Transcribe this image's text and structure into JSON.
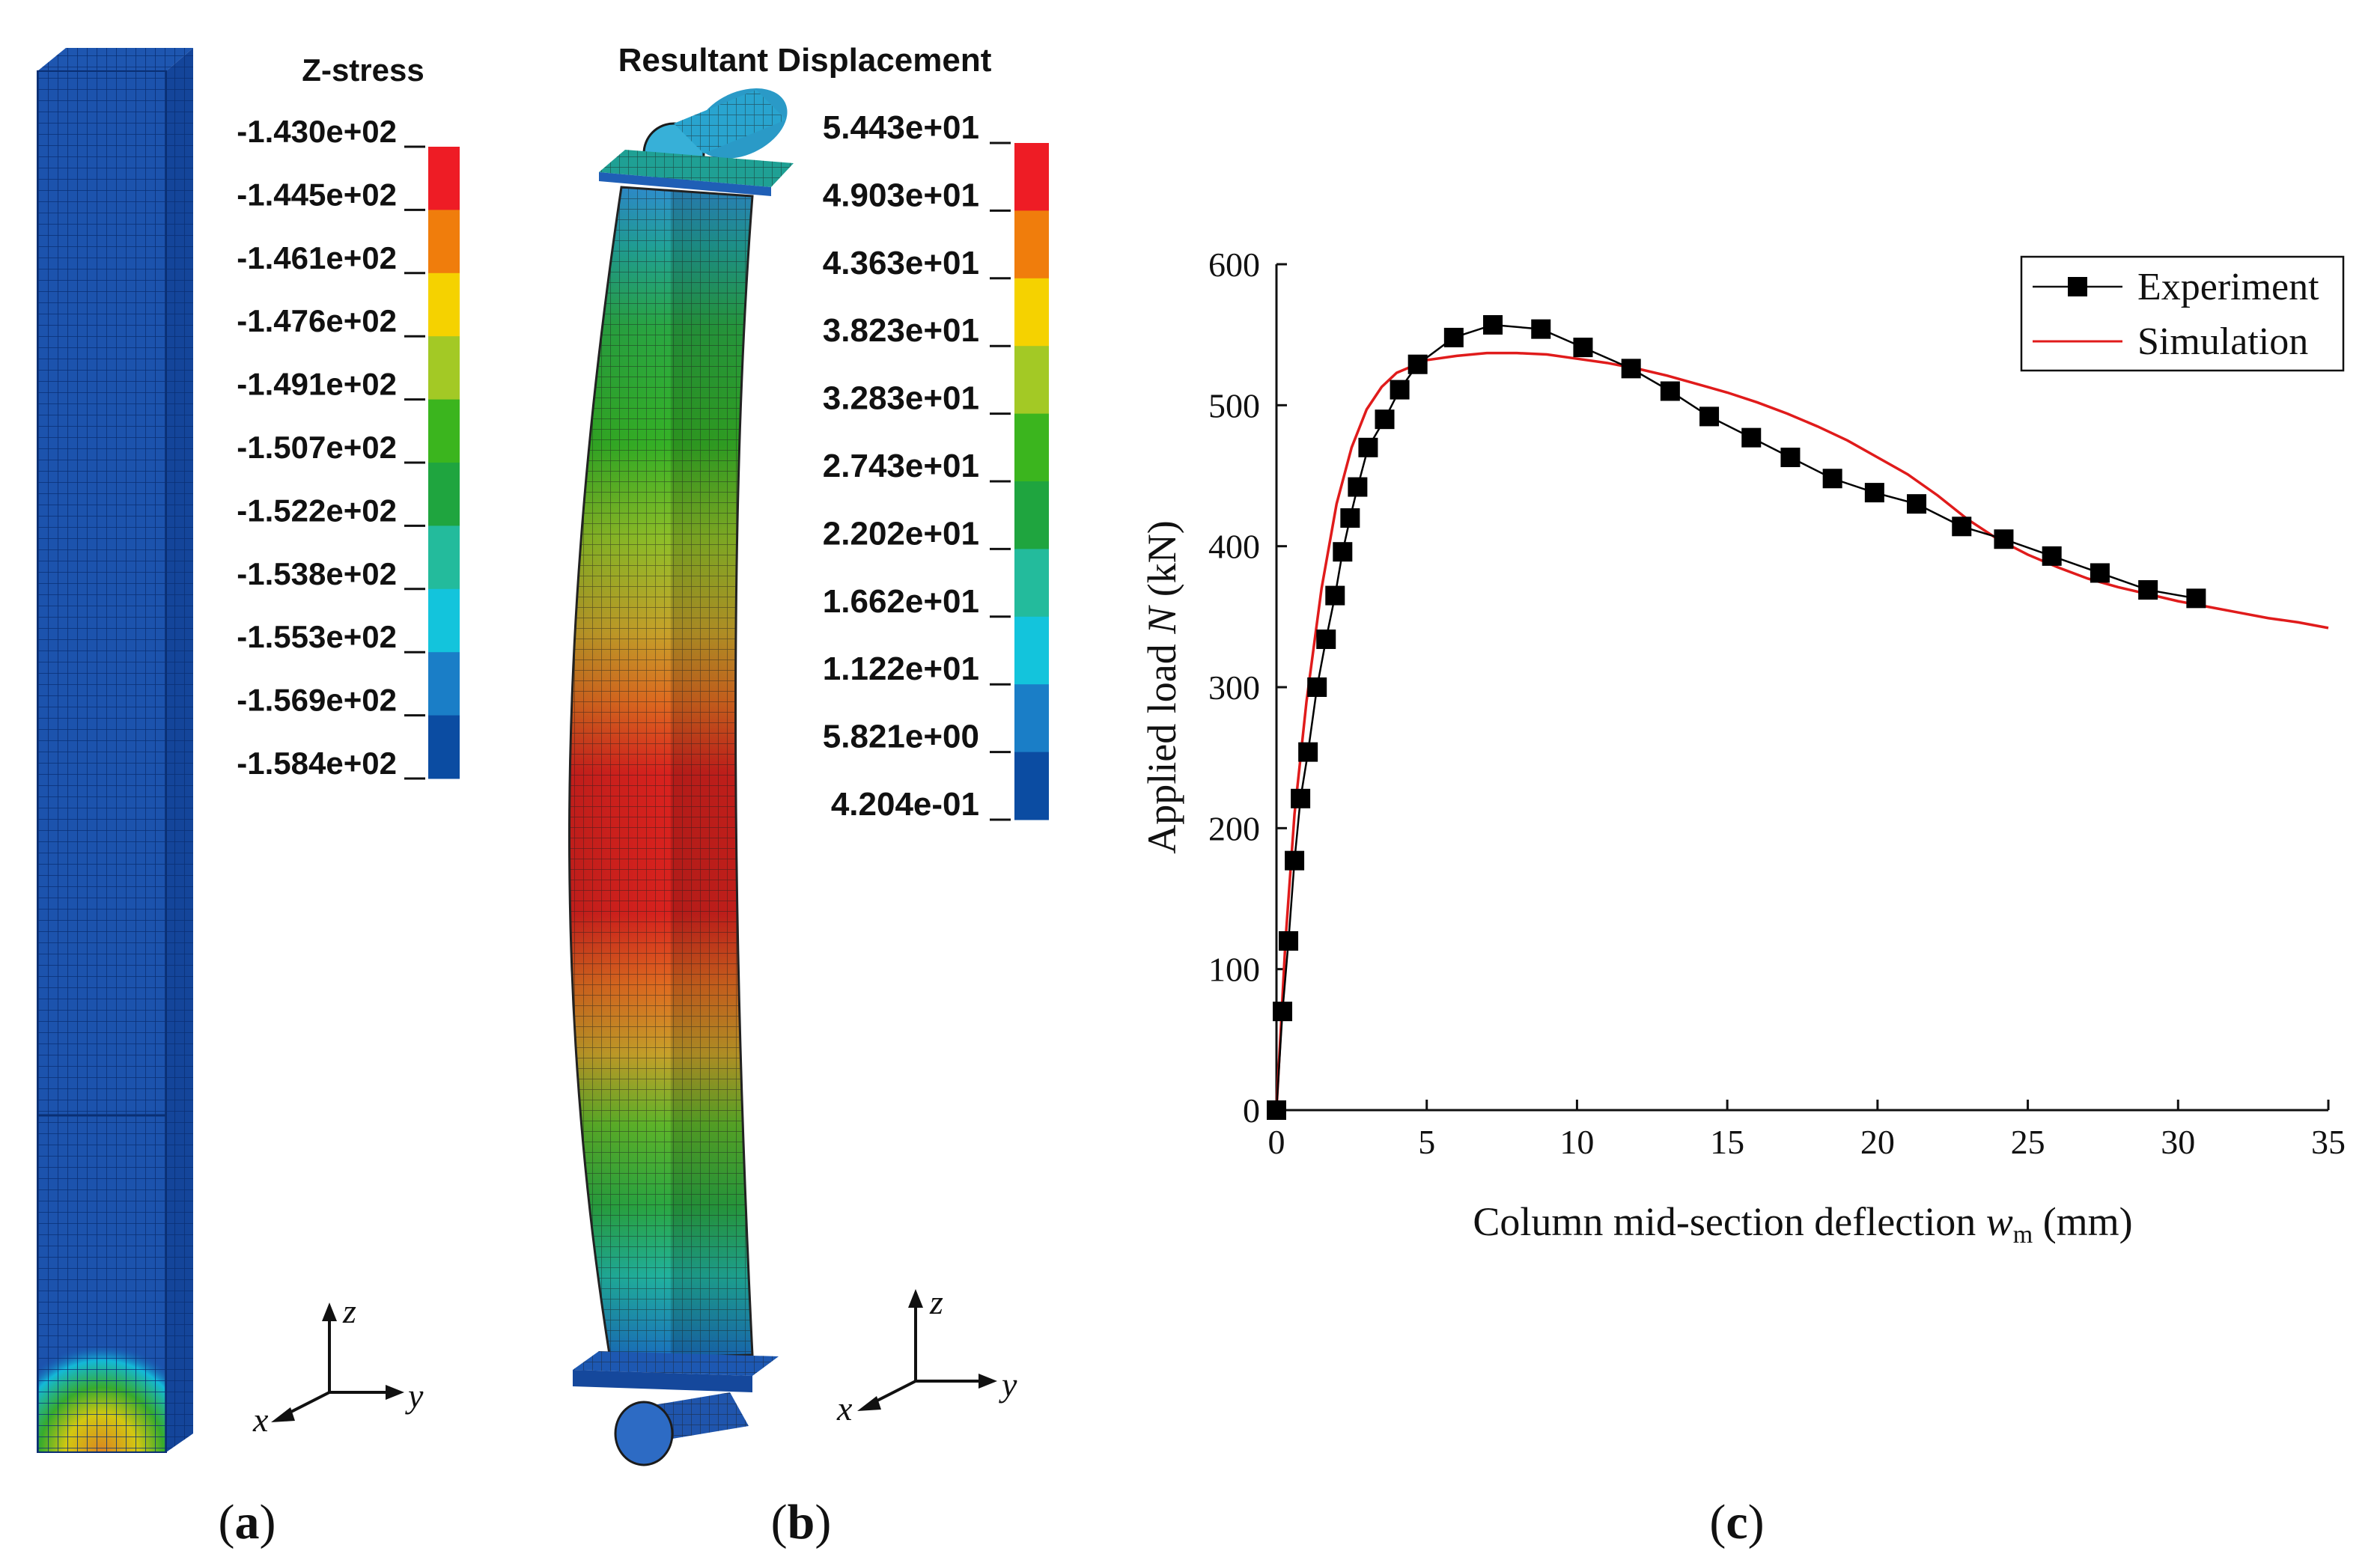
{
  "panel_a": {
    "legend_title": "Z-stress",
    "levels": [
      "-1.430e+02",
      "-1.445e+02",
      "-1.461e+02",
      "-1.476e+02",
      "-1.491e+02",
      "-1.507e+02",
      "-1.522e+02",
      "-1.538e+02",
      "-1.553e+02",
      "-1.569e+02",
      "-1.584e+02"
    ],
    "colors": [
      "#ee1c25",
      "#f07d0c",
      "#f5d200",
      "#a3c925",
      "#3bb51e",
      "#1fa53f",
      "#23bb9c",
      "#13c4dc",
      "#1a7ec7",
      "#0b4ca2"
    ],
    "axis_labels": {
      "x": "x",
      "y": "y",
      "z": "z"
    },
    "caption": {
      "open": "(",
      "letter": "a",
      "close": ")"
    }
  },
  "panel_b": {
    "legend_title": "Resultant Displacement",
    "levels": [
      "5.443e+01",
      "4.903e+01",
      "4.363e+01",
      "3.823e+01",
      "3.283e+01",
      "2.743e+01",
      "2.202e+01",
      "1.662e+01",
      "1.122e+01",
      "5.821e+00",
      "4.204e-01"
    ],
    "colors": [
      "#ee1c25",
      "#f07d0c",
      "#f5d200",
      "#a3c925",
      "#3bb51e",
      "#1fa53f",
      "#23bb9c",
      "#13c4dc",
      "#1a7ec7",
      "#0b4ca2"
    ],
    "axis_labels": {
      "x": "x",
      "y": "y",
      "z": "z"
    },
    "caption": {
      "open": "(",
      "letter": "b",
      "close": ")"
    }
  },
  "chart_data": {
    "type": "line",
    "title": "",
    "xlabel_main": "Column mid-section deflection ",
    "xlabel_var": "w",
    "xlabel_sub": "m",
    "xlabel_unit": " (mm)",
    "ylabel_main": "Applied load ",
    "ylabel_var": "N",
    "ylabel_unit": " (kN)",
    "xlim": [
      0,
      35
    ],
    "ylim": [
      0,
      600
    ],
    "xticks": [
      0,
      5,
      10,
      15,
      20,
      25,
      30,
      35
    ],
    "yticks": [
      0,
      100,
      200,
      300,
      400,
      500,
      600
    ],
    "grid": false,
    "legend_position": "top-right",
    "series": [
      {
        "name": "Experiment",
        "style": "line-square-markers",
        "color": "#000000",
        "x": [
          0,
          0.2,
          0.4,
          0.6,
          0.8,
          1.05,
          1.35,
          1.65,
          1.95,
          2.2,
          2.45,
          2.7,
          3.05,
          3.6,
          4.1,
          4.7,
          5.9,
          7.2,
          8.8,
          10.2,
          11.8,
          13.1,
          14.4,
          15.8,
          17.1,
          18.5,
          19.9,
          21.3,
          22.8,
          24.2,
          25.8,
          27.4,
          29.0,
          30.6
        ],
        "y": [
          0,
          70,
          120,
          177,
          221,
          254,
          300,
          334,
          365,
          396,
          420,
          442,
          470,
          490,
          511,
          529,
          548,
          557,
          554,
          541,
          526,
          510,
          492,
          477,
          463,
          448,
          438,
          430,
          414,
          405,
          393,
          381,
          369,
          363
        ]
      },
      {
        "name": "Simulation",
        "style": "line",
        "color": "#e01b1b",
        "x": [
          0,
          0.3,
          0.6,
          1.0,
          1.5,
          2.0,
          2.5,
          3.0,
          3.5,
          4.0,
          5.0,
          6.0,
          7.0,
          8.0,
          9.0,
          10.0,
          11.0,
          12.0,
          13.0,
          14.0,
          15.0,
          16.0,
          17.0,
          18.0,
          19.0,
          20.0,
          21.0,
          22.0,
          23.0,
          24.0,
          25.0,
          26.0,
          27.0,
          28.0,
          29.0,
          30.0,
          31.0,
          32.0,
          33.0,
          34.0,
          35.0
        ],
        "y": [
          0,
          120,
          210,
          290,
          370,
          430,
          470,
          497,
          513,
          523,
          532,
          535,
          537,
          537,
          536,
          533,
          530,
          526,
          521,
          515,
          509,
          502,
          494,
          485,
          475,
          463,
          451,
          436,
          419,
          405,
          394,
          385,
          377,
          371,
          366,
          361,
          357,
          353,
          349,
          346,
          342
        ]
      }
    ],
    "caption": {
      "open": "(",
      "letter": "c",
      "close": ")"
    }
  }
}
